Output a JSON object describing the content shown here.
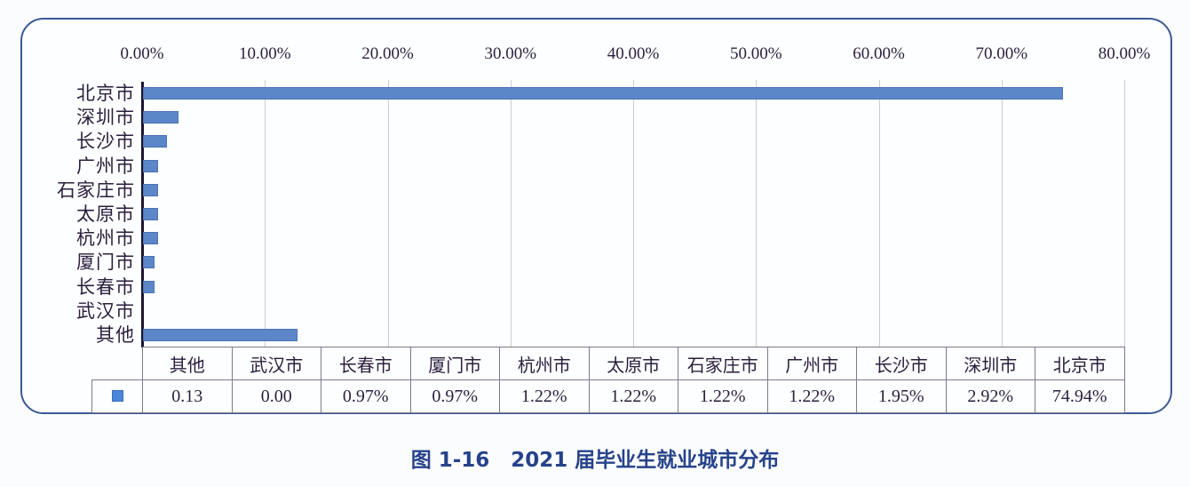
{
  "chart_data": {
    "type": "bar",
    "orientation": "horizontal",
    "title": "图 1-16   2021 届毕业生就业城市分布",
    "xlabel": "",
    "ylabel": "",
    "xlim": [
      0,
      80
    ],
    "x_ticks": [
      "0.00%",
      "10.00%",
      "20.00%",
      "30.00%",
      "40.00%",
      "50.00%",
      "60.00%",
      "70.00%",
      "80.00%"
    ],
    "x_axis_position": "top",
    "grid": true,
    "legend": "data table with legend key (single series, no name)",
    "categories": [
      "北京市",
      "深圳市",
      "长沙市",
      "广州市",
      "石家庄市",
      "太原市",
      "杭州市",
      "厦门市",
      "长春市",
      "武汉市",
      "其他"
    ],
    "values": [
      74.94,
      2.92,
      1.95,
      1.22,
      1.22,
      1.22,
      1.22,
      0.97,
      0.97,
      0.0,
      12.6
    ],
    "series": [
      {
        "name": "",
        "color": "#5b87c8",
        "values": [
          74.94,
          2.92,
          1.95,
          1.22,
          1.22,
          1.22,
          1.22,
          0.97,
          0.97,
          0.0,
          12.6
        ]
      }
    ],
    "data_table": {
      "headers": [
        "其他",
        "武汉市",
        "长春市",
        "厦门市",
        "杭州市",
        "太原市",
        "石家庄市",
        "广州市",
        "长沙市",
        "深圳市",
        "北京市"
      ],
      "values": [
        "0.13",
        "0.00",
        "0.97%",
        "0.97%",
        "1.22%",
        "1.22%",
        "1.22%",
        "1.22%",
        "1.95%",
        "2.92%",
        "74.94%"
      ]
    }
  },
  "caption": "图 1-16   2021 届毕业生就业城市分布",
  "colors": {
    "bar": "#5b87c8",
    "frame": "#3a5a94",
    "caption": "#26438a"
  }
}
